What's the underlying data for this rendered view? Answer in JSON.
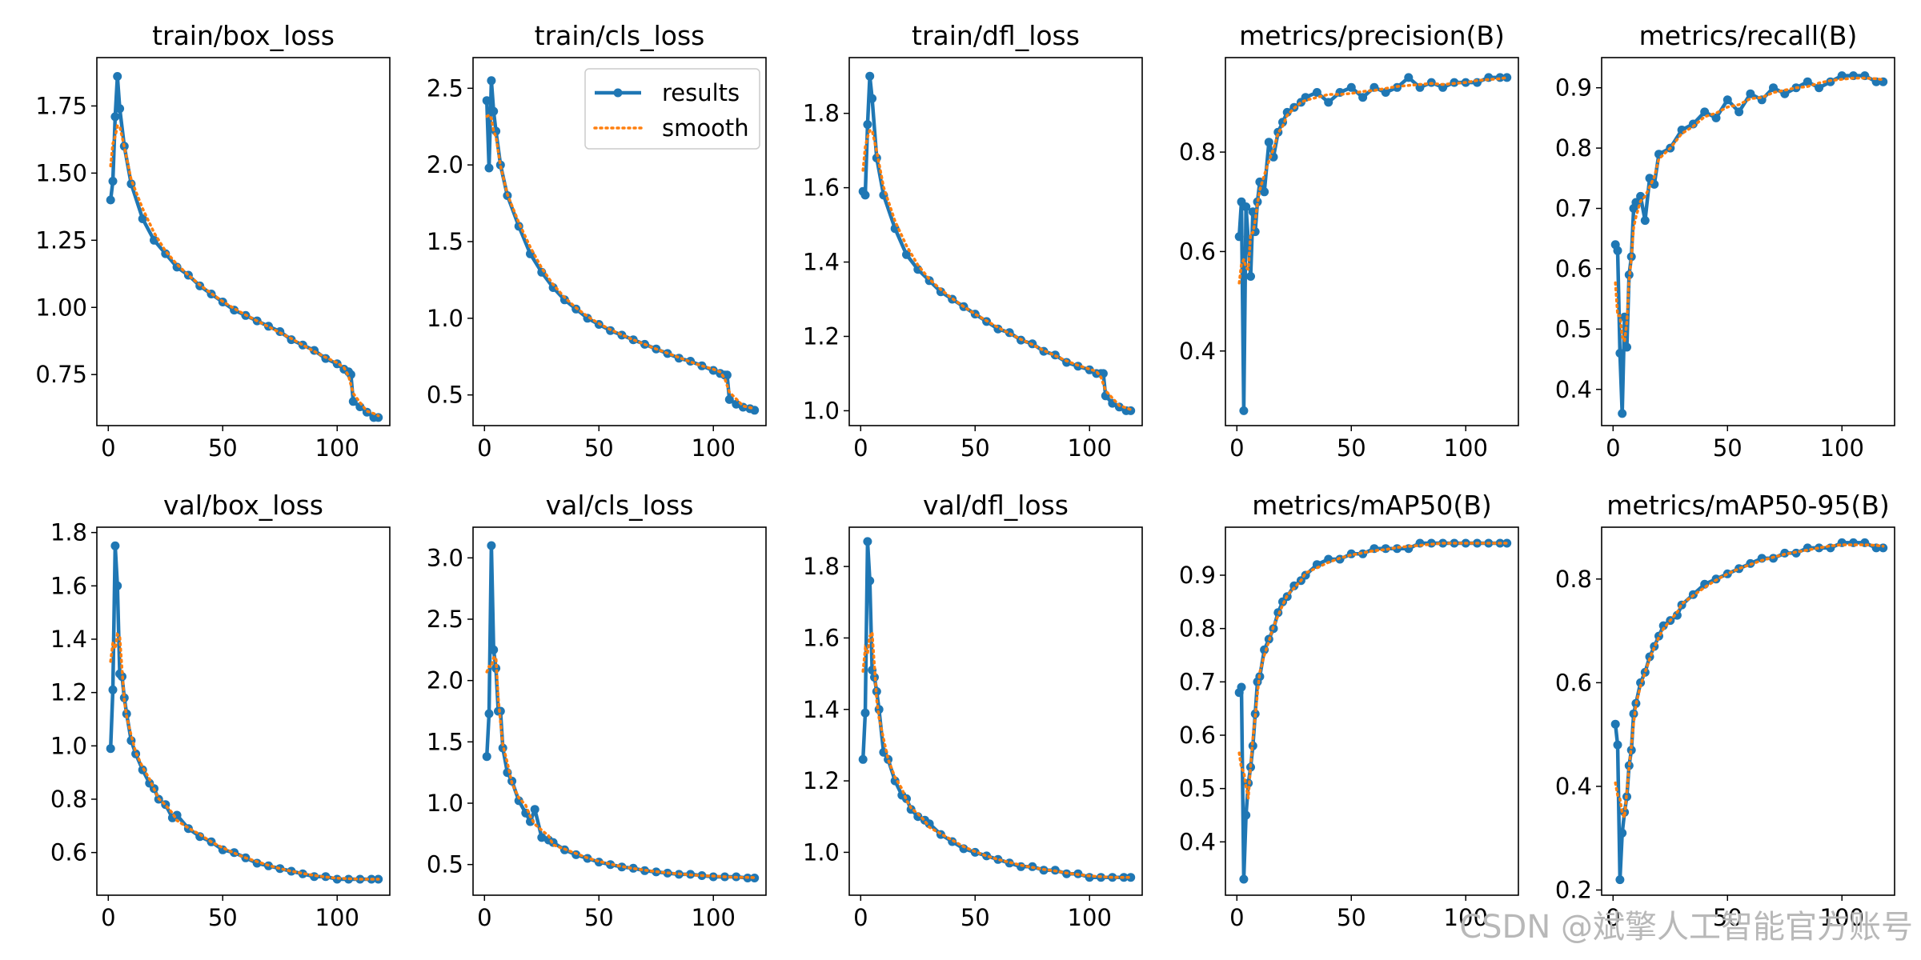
{
  "legend": {
    "results": "results",
    "smooth": "smooth"
  },
  "colors": {
    "results": "#1f77b4",
    "smooth": "#ff7f0e"
  },
  "watermark": "CSDN @斌擎人工智能官方账号",
  "chart_data": [
    {
      "type": "line",
      "title": "train/box_loss",
      "xlim": [
        -5,
        123
      ],
      "ylim": [
        0.56,
        1.93
      ],
      "xticks": [
        0,
        50,
        100
      ],
      "yticks": [
        0.75,
        1.0,
        1.25,
        1.5,
        1.75
      ],
      "ytick_labels": [
        "0.75",
        "1.00",
        "1.25",
        "1.50",
        "1.75"
      ],
      "legend": false,
      "x": [
        1,
        2,
        3,
        4,
        5,
        7,
        10,
        15,
        20,
        25,
        30,
        35,
        40,
        45,
        50,
        55,
        60,
        65,
        70,
        75,
        80,
        85,
        90,
        95,
        100,
        103,
        105,
        106,
        107,
        110,
        113,
        116,
        118
      ],
      "y": [
        1.4,
        1.47,
        1.71,
        1.86,
        1.74,
        1.6,
        1.46,
        1.33,
        1.25,
        1.2,
        1.15,
        1.12,
        1.08,
        1.05,
        1.02,
        0.99,
        0.97,
        0.95,
        0.93,
        0.91,
        0.88,
        0.86,
        0.84,
        0.81,
        0.79,
        0.77,
        0.76,
        0.75,
        0.65,
        0.63,
        0.61,
        0.59,
        0.59
      ]
    },
    {
      "type": "line",
      "title": "train/cls_loss",
      "xlim": [
        -5,
        123
      ],
      "ylim": [
        0.3,
        2.7
      ],
      "xticks": [
        0,
        50,
        100
      ],
      "yticks": [
        0.5,
        1.0,
        1.5,
        2.0,
        2.5
      ],
      "ytick_labels": [
        "0.5",
        "1.0",
        "1.5",
        "2.0",
        "2.5"
      ],
      "legend": true,
      "x": [
        1,
        2,
        3,
        4,
        5,
        7,
        10,
        15,
        20,
        25,
        30,
        35,
        40,
        45,
        50,
        55,
        60,
        65,
        70,
        75,
        80,
        85,
        90,
        95,
        100,
        103,
        105,
        106,
        107,
        110,
        113,
        116,
        118
      ],
      "y": [
        2.42,
        1.98,
        2.55,
        2.35,
        2.22,
        2.0,
        1.8,
        1.6,
        1.42,
        1.3,
        1.2,
        1.12,
        1.06,
        1.0,
        0.96,
        0.92,
        0.89,
        0.86,
        0.83,
        0.8,
        0.77,
        0.74,
        0.72,
        0.69,
        0.66,
        0.64,
        0.63,
        0.63,
        0.47,
        0.44,
        0.42,
        0.41,
        0.4
      ]
    },
    {
      "type": "line",
      "title": "train/dfl_loss",
      "xlim": [
        -5,
        123
      ],
      "ylim": [
        0.96,
        1.95
      ],
      "xticks": [
        0,
        50,
        100
      ],
      "yticks": [
        1.0,
        1.2,
        1.4,
        1.6,
        1.8
      ],
      "ytick_labels": [
        "1.0",
        "1.2",
        "1.4",
        "1.6",
        "1.8"
      ],
      "legend": false,
      "x": [
        1,
        2,
        3,
        4,
        5,
        7,
        10,
        15,
        20,
        25,
        30,
        35,
        40,
        45,
        50,
        55,
        60,
        65,
        70,
        75,
        80,
        85,
        90,
        95,
        100,
        103,
        105,
        106,
        107,
        110,
        113,
        116,
        118
      ],
      "y": [
        1.59,
        1.58,
        1.77,
        1.9,
        1.84,
        1.68,
        1.58,
        1.49,
        1.42,
        1.38,
        1.35,
        1.32,
        1.3,
        1.28,
        1.26,
        1.24,
        1.22,
        1.21,
        1.19,
        1.18,
        1.16,
        1.15,
        1.13,
        1.12,
        1.11,
        1.1,
        1.1,
        1.1,
        1.04,
        1.02,
        1.01,
        1.0,
        1.0
      ]
    },
    {
      "type": "line",
      "title": "metrics/precision(B)",
      "xlim": [
        -5,
        123
      ],
      "ylim": [
        0.25,
        0.99
      ],
      "xticks": [
        0,
        50,
        100
      ],
      "yticks": [
        0.4,
        0.6,
        0.8
      ],
      "ytick_labels": [
        "0.4",
        "0.6",
        "0.8"
      ],
      "legend": false,
      "x": [
        1,
        2,
        3,
        4,
        5,
        6,
        7,
        8,
        9,
        10,
        12,
        14,
        16,
        18,
        20,
        22,
        25,
        28,
        30,
        35,
        40,
        45,
        50,
        55,
        60,
        65,
        70,
        75,
        80,
        85,
        90,
        95,
        100,
        105,
        110,
        115,
        118
      ],
      "y": [
        0.63,
        0.7,
        0.28,
        0.69,
        0.62,
        0.55,
        0.68,
        0.64,
        0.7,
        0.74,
        0.72,
        0.82,
        0.79,
        0.84,
        0.86,
        0.88,
        0.89,
        0.9,
        0.91,
        0.92,
        0.9,
        0.92,
        0.93,
        0.91,
        0.93,
        0.92,
        0.93,
        0.95,
        0.93,
        0.94,
        0.93,
        0.94,
        0.94,
        0.94,
        0.95,
        0.95,
        0.95
      ]
    },
    {
      "type": "line",
      "title": "metrics/recall(B)",
      "xlim": [
        -5,
        123
      ],
      "ylim": [
        0.34,
        0.95
      ],
      "xticks": [
        0,
        50,
        100
      ],
      "yticks": [
        0.4,
        0.5,
        0.6,
        0.7,
        0.8,
        0.9
      ],
      "ytick_labels": [
        "0.4",
        "0.5",
        "0.6",
        "0.7",
        "0.8",
        "0.9"
      ],
      "legend": false,
      "x": [
        1,
        2,
        3,
        4,
        5,
        6,
        7,
        8,
        9,
        10,
        12,
        14,
        16,
        18,
        20,
        25,
        30,
        35,
        40,
        45,
        50,
        55,
        60,
        65,
        70,
        75,
        80,
        85,
        90,
        95,
        100,
        105,
        110,
        115,
        118
      ],
      "y": [
        0.64,
        0.63,
        0.46,
        0.36,
        0.52,
        0.47,
        0.59,
        0.62,
        0.7,
        0.71,
        0.72,
        0.68,
        0.75,
        0.74,
        0.79,
        0.8,
        0.83,
        0.84,
        0.86,
        0.85,
        0.88,
        0.86,
        0.89,
        0.88,
        0.9,
        0.89,
        0.9,
        0.91,
        0.9,
        0.91,
        0.92,
        0.92,
        0.92,
        0.91,
        0.91
      ]
    },
    {
      "type": "line",
      "title": "val/box_loss",
      "xlim": [
        -5,
        123
      ],
      "ylim": [
        0.44,
        1.82
      ],
      "xticks": [
        0,
        50,
        100
      ],
      "yticks": [
        0.6,
        0.8,
        1.0,
        1.2,
        1.4,
        1.6,
        1.8
      ],
      "ytick_labels": [
        "0.6",
        "0.8",
        "1.0",
        "1.2",
        "1.4",
        "1.6",
        "1.8"
      ],
      "legend": false,
      "x": [
        1,
        2,
        3,
        4,
        5,
        6,
        7,
        8,
        10,
        12,
        15,
        18,
        20,
        22,
        25,
        28,
        30,
        35,
        40,
        45,
        50,
        55,
        60,
        65,
        70,
        75,
        80,
        85,
        90,
        95,
        100,
        105,
        110,
        115,
        118
      ],
      "y": [
        0.99,
        1.21,
        1.75,
        1.6,
        1.27,
        1.26,
        1.18,
        1.12,
        1.02,
        0.97,
        0.91,
        0.86,
        0.84,
        0.8,
        0.78,
        0.73,
        0.74,
        0.69,
        0.66,
        0.64,
        0.61,
        0.6,
        0.58,
        0.56,
        0.55,
        0.54,
        0.53,
        0.52,
        0.51,
        0.51,
        0.5,
        0.5,
        0.5,
        0.5,
        0.5
      ]
    },
    {
      "type": "line",
      "title": "val/cls_loss",
      "xlim": [
        -5,
        123
      ],
      "ylim": [
        0.25,
        3.25
      ],
      "xticks": [
        0,
        50,
        100
      ],
      "yticks": [
        0.5,
        1.0,
        1.5,
        2.0,
        2.5,
        3.0
      ],
      "ytick_labels": [
        "0.5",
        "1.0",
        "1.5",
        "2.0",
        "2.5",
        "3.0"
      ],
      "legend": false,
      "x": [
        1,
        2,
        3,
        4,
        5,
        6,
        7,
        8,
        10,
        12,
        15,
        18,
        20,
        22,
        25,
        28,
        30,
        35,
        40,
        45,
        50,
        55,
        60,
        65,
        70,
        75,
        80,
        85,
        90,
        95,
        100,
        105,
        110,
        115,
        118
      ],
      "y": [
        1.38,
        1.73,
        3.1,
        2.25,
        2.1,
        1.75,
        1.75,
        1.45,
        1.25,
        1.18,
        1.02,
        0.92,
        0.85,
        0.95,
        0.72,
        0.7,
        0.68,
        0.62,
        0.58,
        0.55,
        0.52,
        0.5,
        0.48,
        0.47,
        0.45,
        0.44,
        0.43,
        0.42,
        0.42,
        0.41,
        0.4,
        0.4,
        0.4,
        0.39,
        0.39
      ]
    },
    {
      "type": "line",
      "title": "val/dfl_loss",
      "xlim": [
        -5,
        123
      ],
      "ylim": [
        0.88,
        1.91
      ],
      "xticks": [
        0,
        50,
        100
      ],
      "yticks": [
        1.0,
        1.2,
        1.4,
        1.6,
        1.8
      ],
      "ytick_labels": [
        "1.0",
        "1.2",
        "1.4",
        "1.6",
        "1.8"
      ],
      "legend": false,
      "x": [
        1,
        2,
        3,
        4,
        5,
        6,
        7,
        8,
        10,
        12,
        15,
        18,
        20,
        22,
        25,
        28,
        30,
        35,
        40,
        45,
        50,
        55,
        60,
        65,
        70,
        75,
        80,
        85,
        90,
        95,
        100,
        105,
        110,
        115,
        118
      ],
      "y": [
        1.26,
        1.39,
        1.87,
        1.76,
        1.51,
        1.49,
        1.45,
        1.4,
        1.28,
        1.26,
        1.2,
        1.16,
        1.15,
        1.12,
        1.1,
        1.09,
        1.08,
        1.05,
        1.03,
        1.01,
        1.0,
        0.99,
        0.98,
        0.97,
        0.96,
        0.96,
        0.95,
        0.95,
        0.94,
        0.94,
        0.93,
        0.93,
        0.93,
        0.93,
        0.93
      ]
    },
    {
      "type": "line",
      "title": "metrics/mAP50(B)",
      "xlim": [
        -5,
        123
      ],
      "ylim": [
        0.3,
        0.99
      ],
      "xticks": [
        0,
        50,
        100
      ],
      "yticks": [
        0.4,
        0.5,
        0.6,
        0.7,
        0.8,
        0.9
      ],
      "ytick_labels": [
        "0.4",
        "0.5",
        "0.6",
        "0.7",
        "0.8",
        "0.9"
      ],
      "legend": false,
      "x": [
        1,
        2,
        3,
        4,
        5,
        6,
        7,
        8,
        9,
        10,
        12,
        14,
        16,
        18,
        20,
        22,
        25,
        28,
        30,
        35,
        40,
        45,
        50,
        55,
        60,
        65,
        70,
        75,
        80,
        85,
        90,
        95,
        100,
        105,
        110,
        115,
        118
      ],
      "y": [
        0.68,
        0.69,
        0.33,
        0.45,
        0.51,
        0.54,
        0.58,
        0.64,
        0.7,
        0.71,
        0.76,
        0.78,
        0.8,
        0.83,
        0.85,
        0.86,
        0.88,
        0.89,
        0.9,
        0.92,
        0.93,
        0.93,
        0.94,
        0.94,
        0.95,
        0.95,
        0.95,
        0.95,
        0.96,
        0.96,
        0.96,
        0.96,
        0.96,
        0.96,
        0.96,
        0.96,
        0.96
      ]
    },
    {
      "type": "line",
      "title": "metrics/mAP50-95(B)",
      "xlim": [
        -5,
        123
      ],
      "ylim": [
        0.19,
        0.9
      ],
      "xticks": [
        0,
        50,
        100
      ],
      "yticks": [
        0.2,
        0.4,
        0.6,
        0.8
      ],
      "ytick_labels": [
        "0.2",
        "0.4",
        "0.6",
        "0.8"
      ],
      "legend": false,
      "x": [
        1,
        2,
        3,
        4,
        5,
        6,
        7,
        8,
        9,
        10,
        12,
        14,
        16,
        18,
        20,
        22,
        25,
        28,
        30,
        35,
        40,
        45,
        50,
        55,
        60,
        65,
        70,
        75,
        80,
        85,
        90,
        95,
        100,
        105,
        110,
        115,
        118
      ],
      "y": [
        0.52,
        0.48,
        0.22,
        0.31,
        0.35,
        0.38,
        0.44,
        0.47,
        0.54,
        0.56,
        0.6,
        0.62,
        0.65,
        0.67,
        0.69,
        0.71,
        0.72,
        0.73,
        0.75,
        0.77,
        0.79,
        0.8,
        0.81,
        0.82,
        0.83,
        0.84,
        0.84,
        0.85,
        0.85,
        0.86,
        0.86,
        0.86,
        0.87,
        0.87,
        0.87,
        0.86,
        0.86
      ]
    }
  ]
}
